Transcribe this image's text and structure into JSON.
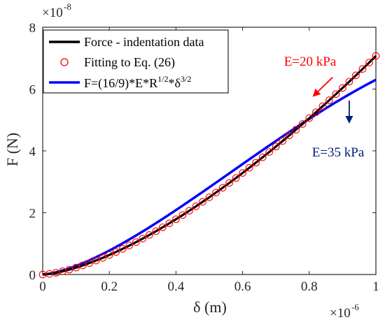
{
  "chart_data": {
    "type": "line",
    "xlabel": "δ (m)",
    "ylabel": "F (N)",
    "x_exponent": {
      "base": "×10",
      "power": "-6"
    },
    "y_exponent": {
      "base": "×10",
      "power": "-8"
    },
    "xlim": [
      0,
      1
    ],
    "ylim": [
      0,
      8
    ],
    "x_ticks": [
      "0",
      "0.2",
      "0.4",
      "0.6",
      "0.8",
      "1"
    ],
    "y_ticks": [
      "0",
      "2",
      "4",
      "6",
      "8"
    ],
    "grid": false,
    "legend_position": "top-left",
    "legend": [
      {
        "label": "Force - indentation data",
        "style": "line",
        "color": "#000000"
      },
      {
        "label": "Fitting to Eq. (26)",
        "style": "marker",
        "color": "#ff0000"
      },
      {
        "label_main": "F=(16/9)*E*R",
        "sup1": "1/2",
        "label_mid": "*δ",
        "sup2": "3/2",
        "style": "line",
        "color": "#0000ff"
      }
    ],
    "series": [
      {
        "name": "Force - indentation data",
        "color": "#000000",
        "model": "power",
        "coef": 7.07,
        "exponent": 1.5,
        "x_range": [
          0,
          1
        ],
        "n": 101
      },
      {
        "name": "Fitting to Eq. (26)",
        "color": "#ff0000",
        "model": "power",
        "coef": 7.07,
        "exponent": 1.5,
        "x_range": [
          0,
          1
        ],
        "n": 51,
        "marker": "circle"
      },
      {
        "name": "F=(16/9)*E*R^1/2*δ^3/2",
        "color": "#0000ff",
        "model": "tanh_power",
        "coef": 10.0,
        "exponent": 1.5,
        "scale": 1.35,
        "x_range": [
          0,
          1
        ],
        "n": 101
      }
    ],
    "annotations": [
      {
        "text": "E=20 kPa",
        "color": "#ff0000",
        "arrow_from": [
          0.87,
          6.38
        ],
        "arrow_to": [
          0.81,
          5.75
        ]
      },
      {
        "text": "E=35 kPa",
        "color": "#001e78",
        "arrow_from": [
          0.92,
          5.63
        ],
        "arrow_to": [
          0.92,
          4.88
        ]
      }
    ]
  }
}
